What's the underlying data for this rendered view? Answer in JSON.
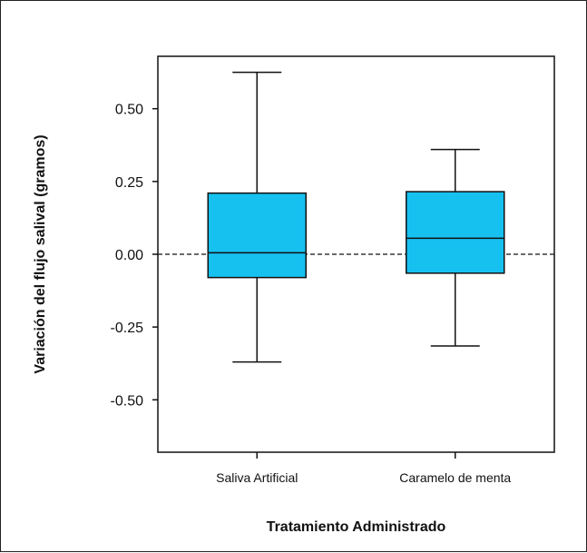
{
  "chart_data": {
    "type": "boxplot",
    "title": "",
    "xlabel": "Tratamiento Administrado",
    "ylabel": "Variación del flujo salival (gramos)",
    "ylim": [
      -0.68,
      0.68
    ],
    "yticks": [
      0.5,
      0.25,
      0.0,
      -0.25,
      -0.5
    ],
    "ytick_labels": [
      "0.50",
      "0.25",
      "0.00",
      "-0.25",
      "-0.50"
    ],
    "reference_line": {
      "y": 0.0,
      "style": "dashed"
    },
    "box_color": "#16c1f0",
    "categories": [
      "Saliva Artificial",
      "Caramelo de menta"
    ],
    "boxes": [
      {
        "category": "Saliva Artificial",
        "whisker_low": -0.37,
        "q1": -0.08,
        "median": 0.005,
        "q3": 0.21,
        "whisker_high": 0.625
      },
      {
        "category": "Caramelo de menta",
        "whisker_low": -0.315,
        "q1": -0.065,
        "median": 0.055,
        "q3": 0.215,
        "whisker_high": 0.36
      }
    ]
  }
}
